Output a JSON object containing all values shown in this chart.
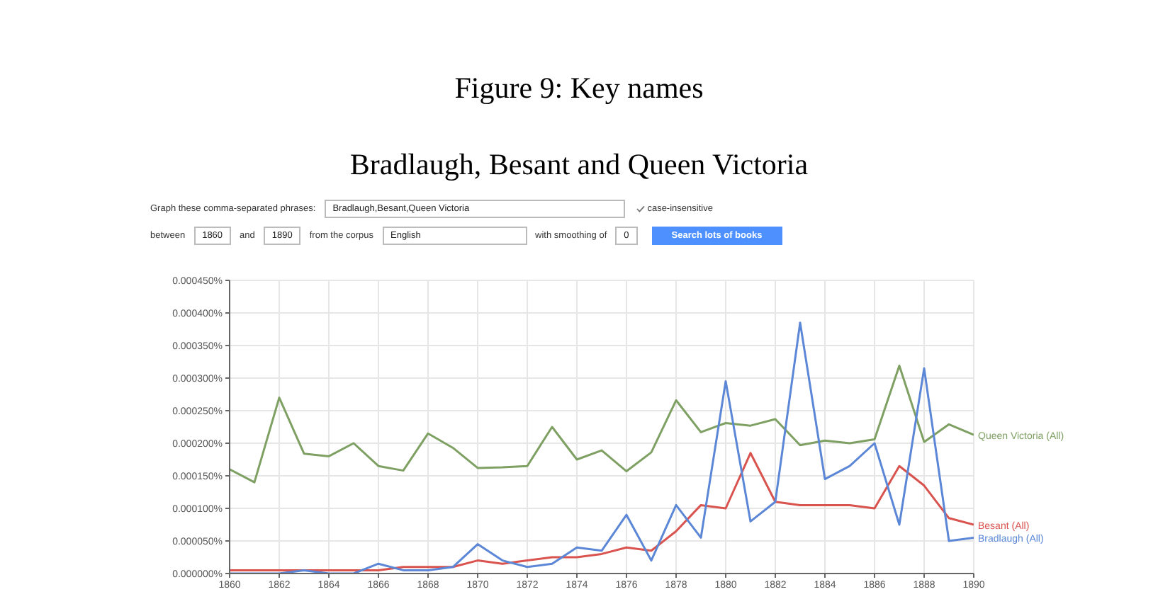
{
  "chart_data": {
    "type": "line",
    "title": "Figure 9: Key names",
    "subtitle": "Bradlaugh, Besant and Queen Victoria",
    "annotations": [
      "Graph these comma-separated phrases:",
      "Bradlaugh,Besant,Queen Victoria",
      "case-insensitive",
      "between",
      "1860",
      "and",
      "1890",
      "from the corpus",
      "English",
      "with smoothing of",
      "0",
      "Search lots of books"
    ],
    "x": [
      1860,
      1861,
      1862,
      1863,
      1864,
      1865,
      1866,
      1867,
      1868,
      1869,
      1870,
      1871,
      1872,
      1873,
      1874,
      1875,
      1876,
      1877,
      1878,
      1879,
      1880,
      1881,
      1882,
      1883,
      1884,
      1885,
      1886,
      1887,
      1888,
      1889,
      1890
    ],
    "series": [
      {
        "name": "Queen Victoria (All)",
        "color": "#7fa063",
        "values": [
          0.00016,
          0.00014,
          0.00027,
          0.000184,
          0.00018,
          0.0002,
          0.000165,
          0.000158,
          0.000215,
          0.000193,
          0.000162,
          0.000163,
          0.000165,
          0.000225,
          0.000175,
          0.000189,
          0.000157,
          0.000186,
          0.000266,
          0.000217,
          0.000231,
          0.000227,
          0.000237,
          0.000197,
          0.000204,
          0.0002,
          0.000206,
          0.000319,
          0.000202,
          0.000229,
          0.000213
        ]
      },
      {
        "name": "Besant (All)",
        "color": "#d9534f",
        "values": [
          5e-06,
          5e-06,
          5e-06,
          5e-06,
          5e-06,
          5e-06,
          5e-06,
          1e-05,
          1e-05,
          1e-05,
          2e-05,
          1.5e-05,
          2e-05,
          2.5e-05,
          2.5e-05,
          3e-05,
          4e-05,
          3.5e-05,
          6.5e-05,
          0.000105,
          0.0001,
          0.000185,
          0.00011,
          0.000105,
          0.000105,
          0.000105,
          0.0001,
          0.000165,
          0.000135,
          8.5e-05,
          7.5e-05
        ]
      },
      {
        "name": "Bradlaugh (All)",
        "color": "#5b87d6",
        "values": [
          0,
          0,
          0,
          5e-06,
          0,
          0,
          1.5e-05,
          5e-06,
          5e-06,
          1e-05,
          4.5e-05,
          2e-05,
          1e-05,
          1.5e-05,
          4e-05,
          3.5e-05,
          9e-05,
          2e-05,
          0.000105,
          5.5e-05,
          0.000295,
          8e-05,
          0.00011,
          0.000385,
          0.000145,
          0.000165,
          0.0002,
          7.5e-05,
          0.000315,
          5e-05,
          5.5e-05
        ]
      }
    ],
    "xlim": [
      1860,
      1890
    ],
    "xticks": [
      1860,
      1862,
      1864,
      1866,
      1868,
      1870,
      1872,
      1874,
      1876,
      1878,
      1880,
      1882,
      1884,
      1886,
      1888,
      1890
    ],
    "ylim": [
      0,
      0.00045
    ],
    "yticks": [
      {
        "value": 0,
        "label": "0.000000%"
      },
      {
        "value": 5e-05,
        "label": "0.000050%"
      },
      {
        "value": 0.0001,
        "label": "0.000100%"
      },
      {
        "value": 0.00015,
        "label": "0.000150%"
      },
      {
        "value": 0.0002,
        "label": "0.000200%"
      },
      {
        "value": 0.00025,
        "label": "0.000250%"
      },
      {
        "value": 0.0003,
        "label": "0.000300%"
      },
      {
        "value": 0.00035,
        "label": "0.000350%"
      },
      {
        "value": 0.0004,
        "label": "0.000400%"
      },
      {
        "value": 0.00045,
        "label": "0.000450%"
      }
    ],
    "grid": true,
    "legend": false,
    "marker": "none",
    "line_style": "solid"
  }
}
